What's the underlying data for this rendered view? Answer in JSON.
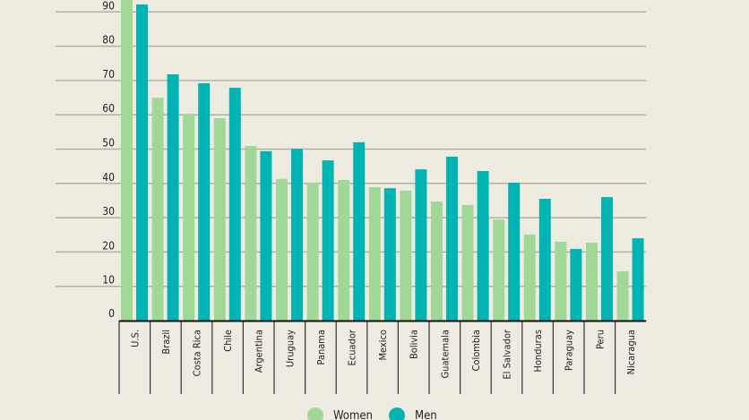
{
  "chart_data": {
    "type": "bar",
    "title": "",
    "xlabel": "",
    "ylabel": "",
    "ylim": [
      0,
      93
    ],
    "yticks": [
      0,
      10,
      20,
      30,
      40,
      50,
      60,
      70,
      80,
      90
    ],
    "grid": true,
    "legend_position": "bottom",
    "categories": [
      "U.S.",
      "Brazil",
      "Costa Rica",
      "Chile",
      "Argentina",
      "Uruguay",
      "Panama",
      "Ecuador",
      "Mexico",
      "Bolivia",
      "Guatemala",
      "Colombia",
      "El Salvador",
      "Honduras",
      "Paraguay",
      "Peru",
      "Nicaragua"
    ],
    "series": [
      {
        "name": "Women",
        "color": "#a1d898",
        "values": [
          95,
          65,
          60.3,
          59,
          50.9,
          41.3,
          40.2,
          41,
          38.9,
          37.9,
          34.7,
          33.7,
          29.5,
          25.1,
          23,
          22.7,
          14.4
        ]
      },
      {
        "name": "Men",
        "color": "#00b4b4",
        "values": [
          92.2,
          71.8,
          69.2,
          67.9,
          49.4,
          50.1,
          46.7,
          52,
          38.6,
          44.1,
          47.8,
          43.6,
          40.2,
          35.5,
          20.9,
          36,
          24
        ]
      }
    ]
  }
}
